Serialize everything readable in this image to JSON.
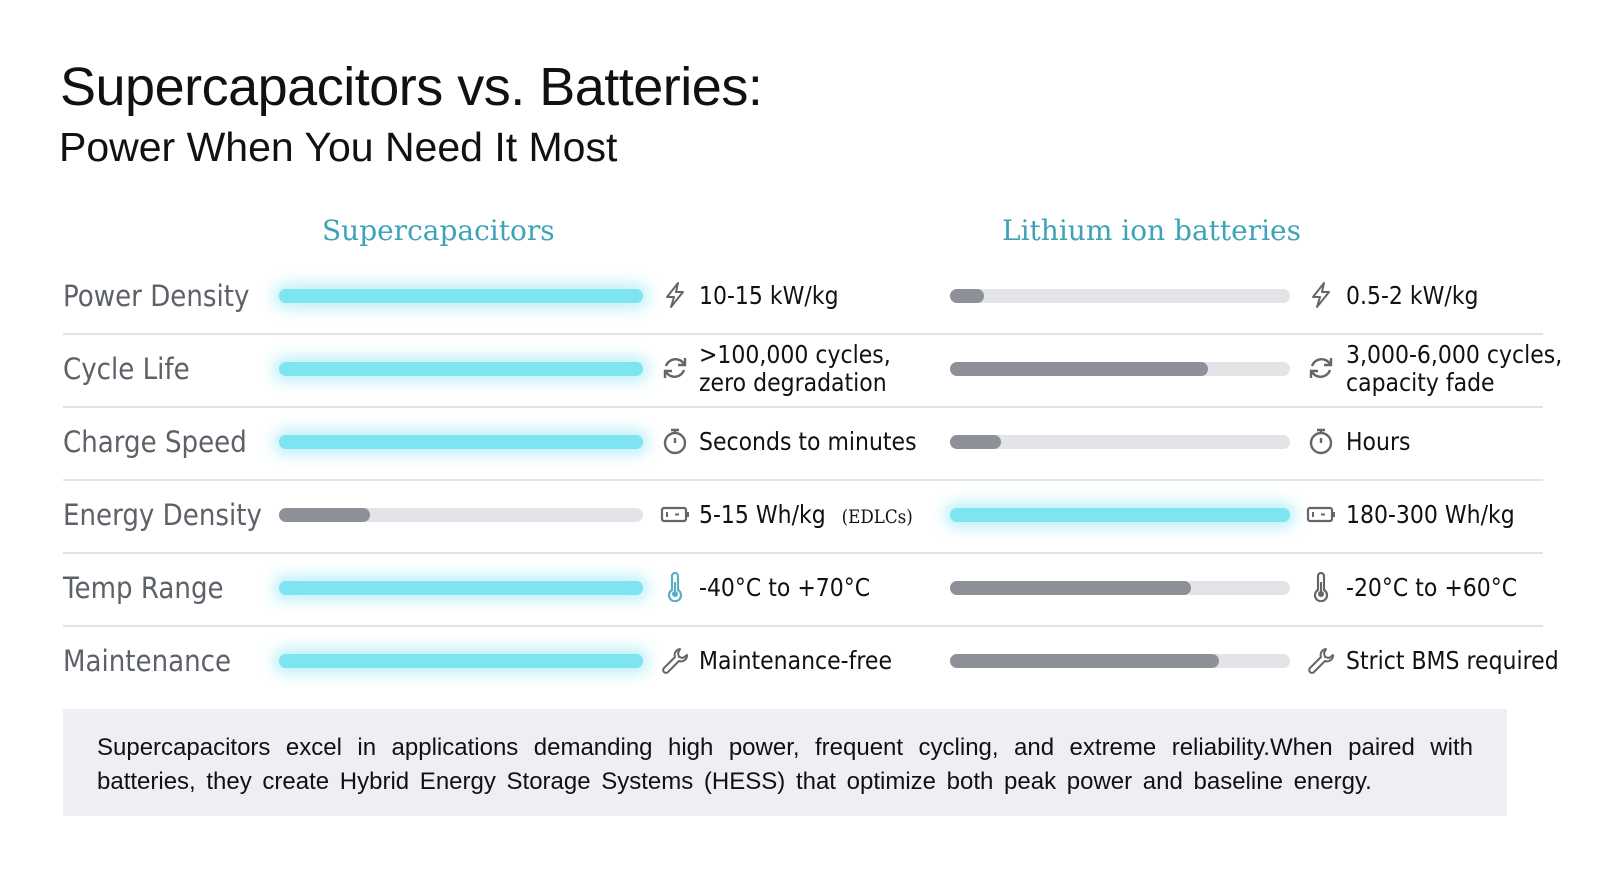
{
  "title": "Supercapacitors vs. Batteries:",
  "subtitle": "Power When You Need It Most",
  "colors": {
    "accent": "#7de4f0",
    "header": "#3fa3b8",
    "low_bar": "#8e9098",
    "track": "#e3e4e8"
  },
  "chart_data": {
    "type": "bar",
    "orientation": "horizontal",
    "categories": [
      "Power Density",
      "Cycle Life",
      "Charge Speed",
      "Energy Density",
      "Temp Range",
      "Maintenance"
    ],
    "series": [
      {
        "name": "Supercapacitors",
        "values": [
          1.0,
          1.0,
          1.0,
          0.25,
          1.0,
          1.0
        ],
        "labels": [
          [
            "10-15 kW/kg"
          ],
          [
            ">100,000 cycles,",
            "zero degradation"
          ],
          [
            "Seconds to minutes"
          ],
          [
            "5-15 Wh/kg"
          ],
          [
            "-40°C to +70°C"
          ],
          [
            "Maintenance-free"
          ]
        ],
        "notes": [
          "",
          "",
          "",
          "(EDLCs)",
          "",
          ""
        ]
      },
      {
        "name": "Lithium ion batteries",
        "values": [
          0.1,
          0.76,
          0.15,
          1.0,
          0.71,
          0.79
        ],
        "labels": [
          [
            "0.5-2 kW/kg"
          ],
          [
            "3,000-6,000 cycles,",
            "capacity fade"
          ],
          [
            "Hours"
          ],
          [
            "180-300 Wh/kg"
          ],
          [
            "-20°C to +60°C"
          ],
          [
            "Strict BMS required"
          ]
        ]
      }
    ],
    "icons": [
      "lightning-icon",
      "refresh-cycle-icon",
      "stopwatch-icon",
      "battery-icon",
      "thermometer-icon",
      "wrench-icon"
    ],
    "xlim": [
      0,
      1
    ]
  },
  "summary": "Supercapacitors excel in applications demanding high power, frequent cycling, and extreme reliability.When paired with batteries, they create Hybrid Energy Storage Systems (HESS) that optimize both peak power and baseline energy."
}
